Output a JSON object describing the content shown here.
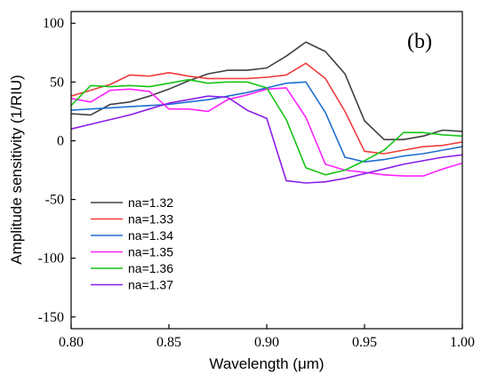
{
  "chart_data": {
    "type": "line",
    "panel_label": "(b)",
    "xlabel": "Wavelength (μm)",
    "ylabel": "Amplitude sensitivity (1/RIU)",
    "xlim": [
      0.8,
      1.0
    ],
    "ylim": [
      -160,
      110
    ],
    "x_ticks": [
      0.8,
      0.85,
      0.9,
      0.95,
      1.0
    ],
    "x_tick_labels": [
      "0.80",
      "0.85",
      "0.90",
      "0.95",
      "1.00"
    ],
    "y_ticks": [
      100,
      50,
      0,
      -50,
      -100,
      -150
    ],
    "y_tick_labels": [
      "100",
      "50",
      "0",
      "-50",
      "-100",
      "-150"
    ],
    "grid": false,
    "legend_position": "lower-left",
    "x": [
      0.8,
      0.81,
      0.82,
      0.83,
      0.84,
      0.85,
      0.86,
      0.87,
      0.88,
      0.89,
      0.9,
      0.91,
      0.92,
      0.93,
      0.94,
      0.95,
      0.96,
      0.97,
      0.98,
      0.99,
      1.0
    ],
    "series": [
      {
        "name": "na=1.32",
        "color": "#404040",
        "values": [
          23,
          22,
          31,
          33,
          38,
          44,
          51,
          57,
          60,
          60,
          62,
          72,
          84,
          76,
          57,
          17,
          1,
          1,
          4,
          9,
          8
        ]
      },
      {
        "name": "na=1.33",
        "color": "#f03c3c",
        "values": [
          38,
          43,
          48,
          56,
          55,
          58,
          55,
          53,
          53,
          53,
          54,
          56,
          66,
          53,
          25,
          -9,
          -11,
          -8,
          -5,
          -4,
          -1
        ]
      },
      {
        "name": "na=1.34",
        "color": "#1e6fd0",
        "values": [
          26,
          27,
          28,
          29,
          30,
          31,
          33,
          35,
          38,
          41,
          45,
          49,
          50,
          24,
          -14,
          -18,
          -16,
          -13,
          -11,
          -8,
          -5
        ]
      },
      {
        "name": "na=1.35",
        "color": "#ff22ff",
        "values": [
          36,
          33,
          43,
          44,
          42,
          27,
          27,
          25,
          35,
          39,
          44,
          45,
          20,
          -20,
          -25,
          -27,
          -29,
          -30,
          -30,
          -24,
          -19
        ]
      },
      {
        "name": "na=1.36",
        "color": "#17c417",
        "values": [
          30,
          47,
          46,
          47,
          46,
          49,
          52,
          49,
          50,
          50,
          45,
          18,
          -23,
          -29,
          -25,
          -17,
          -8,
          7,
          7,
          5,
          4
        ]
      },
      {
        "name": "na=1.37",
        "color": "#8a1ee8",
        "values": [
          10,
          14,
          18,
          22,
          27,
          32,
          35,
          38,
          37,
          26,
          19,
          -34,
          -36,
          -35,
          -32,
          -28,
          -24,
          -20,
          -17,
          -14,
          -12
        ]
      }
    ]
  }
}
